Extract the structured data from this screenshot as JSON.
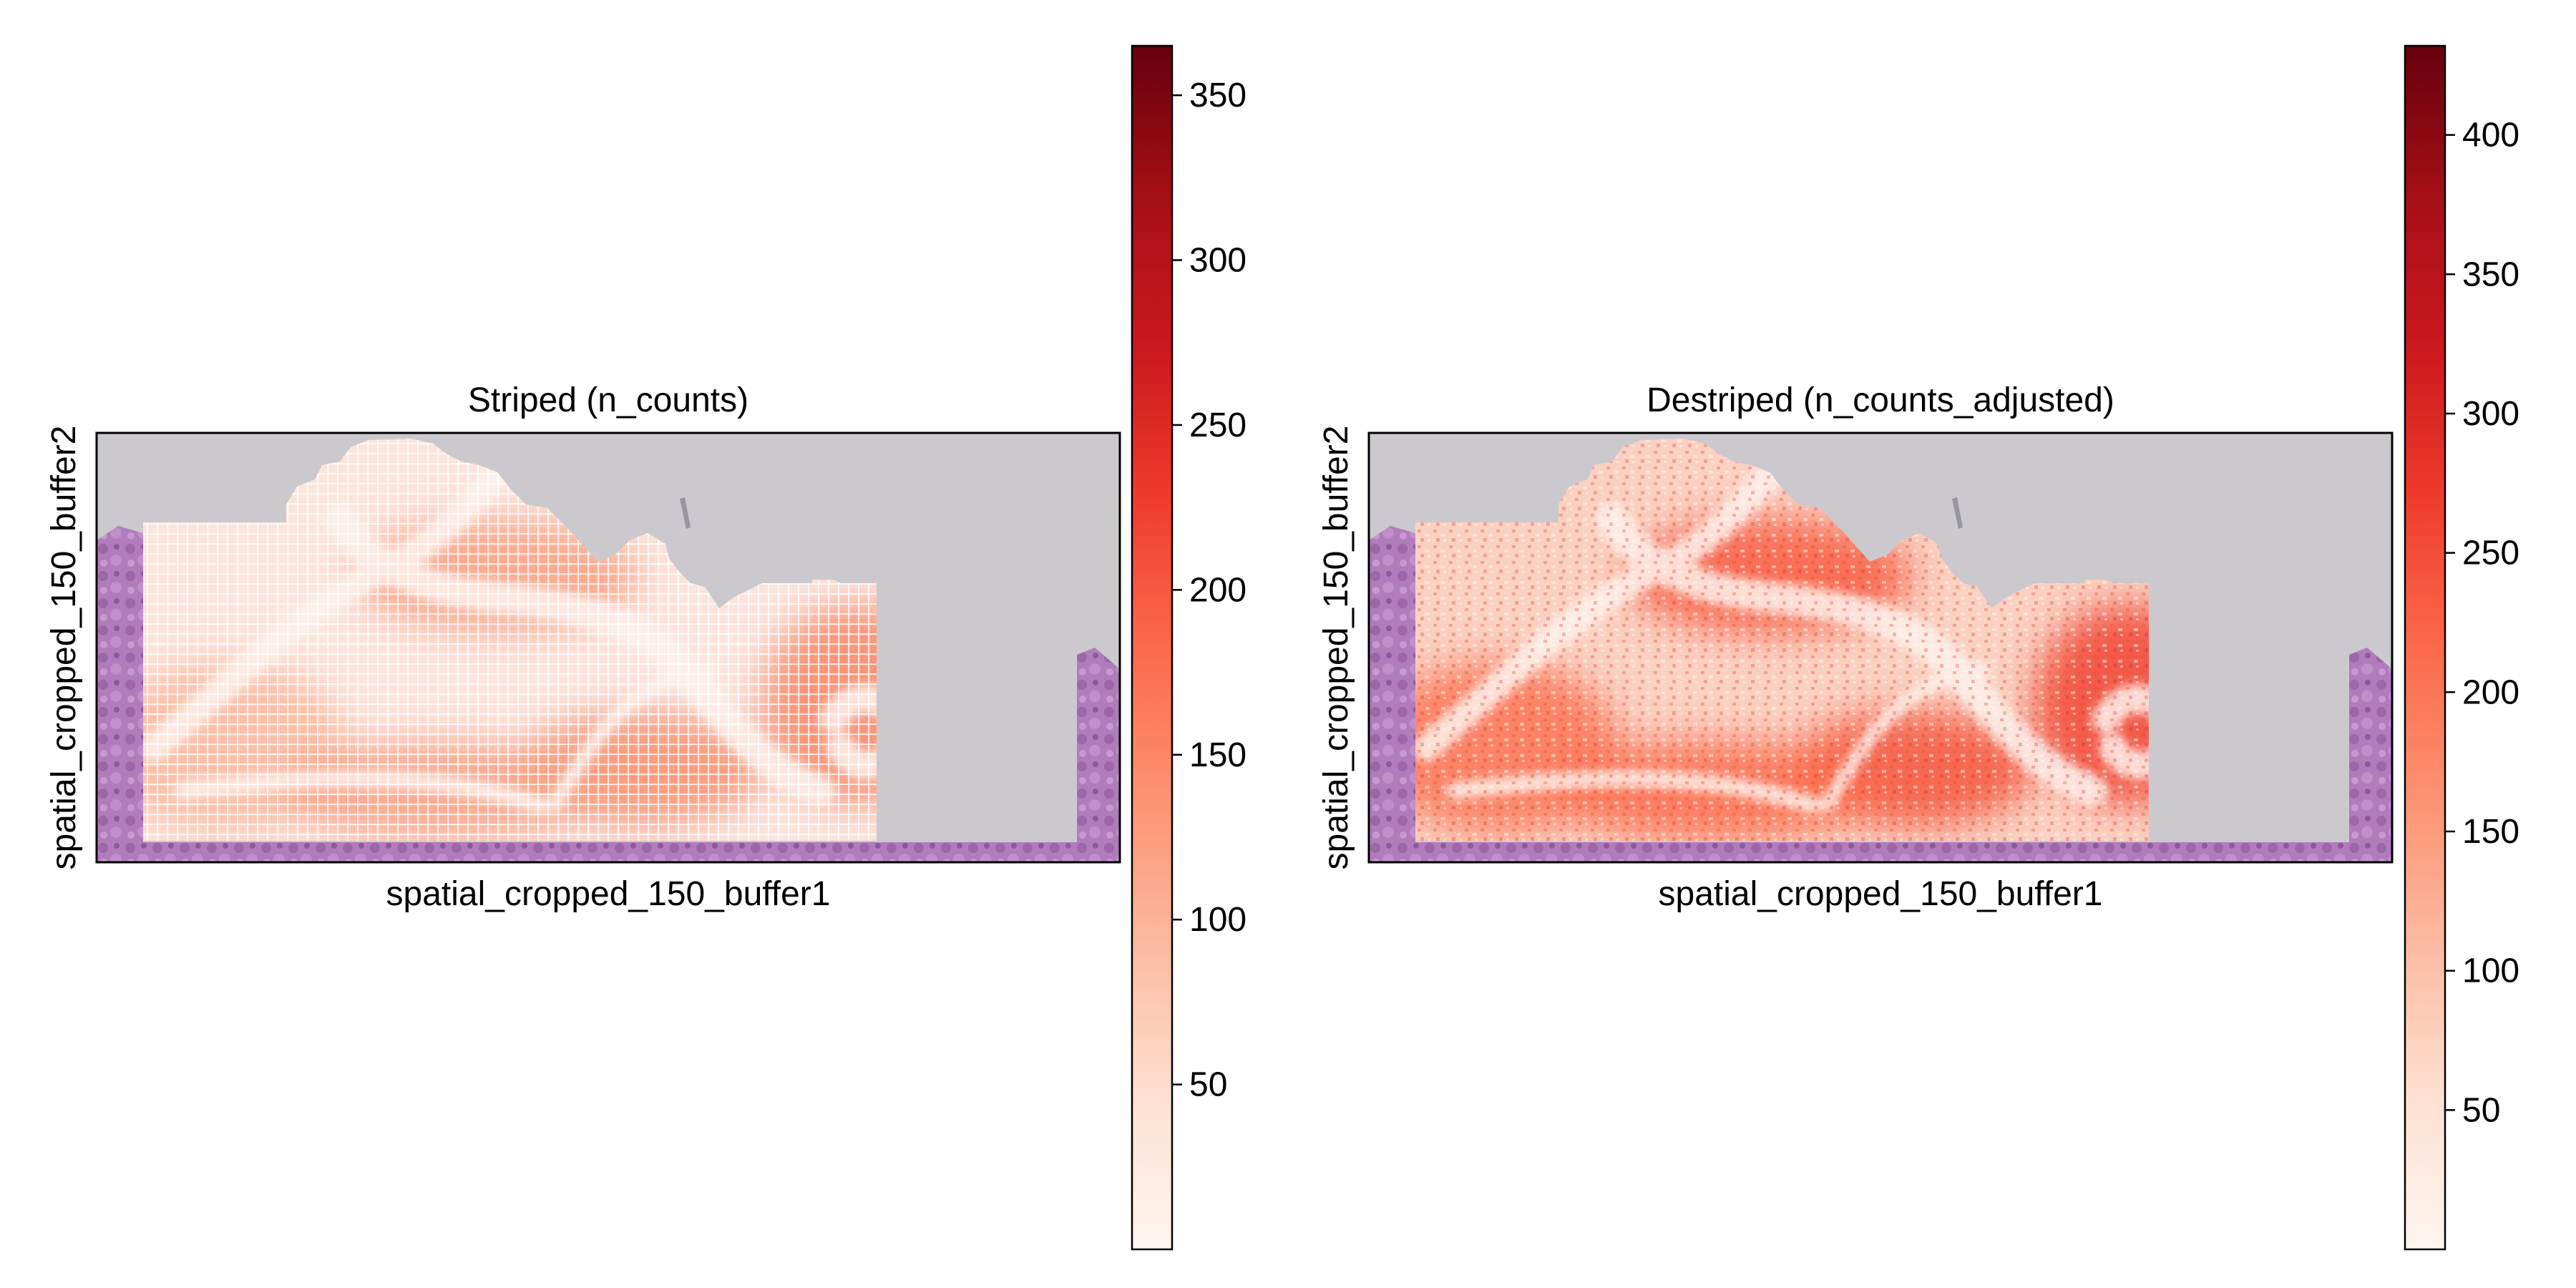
{
  "chart_data": [
    {
      "type": "heatmap",
      "title": "Striped (n_counts)",
      "xlabel": "spatial_cropped_150_buffer1",
      "ylabel": "spatial_cropped_150_buffer2",
      "background": "tissue image (H&E)",
      "colormap": "Reds",
      "colorbar": {
        "min": 0,
        "max": 365,
        "ticks": [
          50,
          100,
          150,
          200,
          250,
          300,
          350
        ]
      },
      "striped": true,
      "grid": false,
      "hotspots": [
        {
          "region": "upper-middle band",
          "level": 120
        },
        {
          "region": "lower-left",
          "level": 95
        },
        {
          "region": "lower-middle",
          "level": 140
        },
        {
          "region": "lower-center",
          "level": 120
        },
        {
          "region": "right swirl",
          "level": 150
        }
      ]
    },
    {
      "type": "heatmap",
      "title": "Destriped (n_counts_adjusted)",
      "xlabel": "spatial_cropped_150_buffer1",
      "ylabel": "spatial_cropped_150_buffer2",
      "background": "tissue image (H&E)",
      "colormap": "Reds",
      "colorbar": {
        "min": 0,
        "max": 432,
        "ticks": [
          50,
          100,
          150,
          200,
          250,
          300,
          350,
          400
        ]
      },
      "striped": false,
      "grid": false,
      "hotspots": [
        {
          "region": "upper-middle band",
          "level": 230
        },
        {
          "region": "lower-left",
          "level": 200
        },
        {
          "region": "lower-middle",
          "level": 240
        },
        {
          "region": "lower-center",
          "level": 210
        },
        {
          "region": "right swirl",
          "level": 260
        }
      ]
    }
  ],
  "colors": {
    "reds_light": "#fff5f0",
    "reds_mid": "#fb6a4a",
    "reds_dark": "#67000d",
    "background_grey": "#cbc9cd",
    "tissue_purple": "#a870b5",
    "tissue_cream": "#fbeee9"
  }
}
